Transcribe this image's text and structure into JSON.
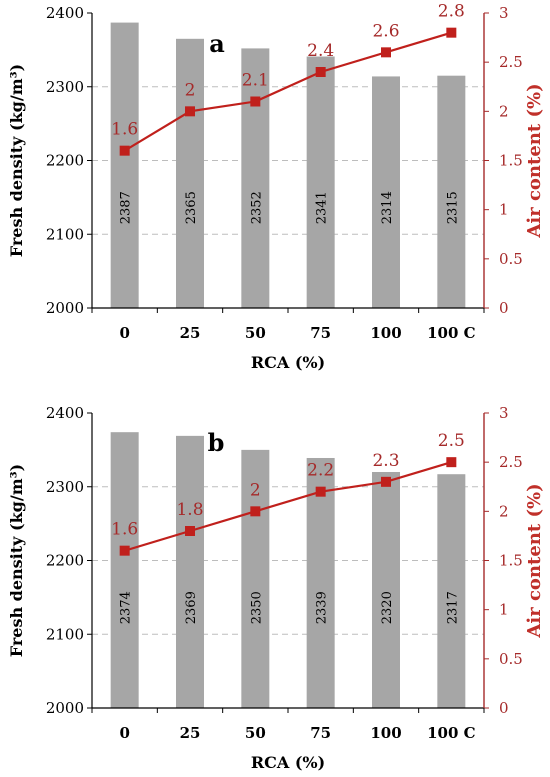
{
  "chart_data": [
    {
      "type": "bar",
      "panel_label": "a",
      "categories": [
        "0",
        "25",
        "50",
        "75",
        "100",
        "100 C"
      ],
      "xlabel": "RCA (%)",
      "ylabel": "Fresh density (kg/m³)",
      "ylim": [
        2000,
        2400
      ],
      "yticks": [
        "2000",
        "2100",
        "2200",
        "2300",
        "2400"
      ],
      "y2label": "Air content (%)",
      "y2lim": [
        0,
        3
      ],
      "y2ticks": [
        "0",
        "0.5",
        "1",
        "1.5",
        "2",
        "2.5",
        "3"
      ],
      "grid": "horizontal dashed",
      "series": [
        {
          "kind": "bar",
          "color": "#a6a6a6",
          "values": [
            2387,
            2365,
            2352,
            2341,
            2314,
            2315
          ],
          "labels": [
            "2387",
            "2365",
            "2352",
            "2341",
            "2314",
            "2315"
          ]
        },
        {
          "kind": "line",
          "axis": "right",
          "color": "#c0201c",
          "values": [
            1.6,
            2,
            2.1,
            2.4,
            2.6,
            2.8
          ],
          "labels": [
            "1.6",
            "2",
            "2.1",
            "2.4",
            "2.6",
            "2.8"
          ]
        }
      ]
    },
    {
      "type": "bar",
      "panel_label": "b",
      "categories": [
        "0",
        "25",
        "50",
        "75",
        "100",
        "100 C"
      ],
      "xlabel": "RCA (%)",
      "ylabel": "Fresh density (kg/m³)",
      "ylim": [
        2000,
        2400
      ],
      "yticks": [
        "2000",
        "2100",
        "2200",
        "2300",
        "2400"
      ],
      "y2label": "Air content (%)",
      "y2lim": [
        0,
        3
      ],
      "y2ticks": [
        "0",
        "0.5",
        "1",
        "1.5",
        "2",
        "2.5",
        "3"
      ],
      "grid": "horizontal dashed",
      "series": [
        {
          "kind": "bar",
          "color": "#a6a6a6",
          "values": [
            2374,
            2369,
            2350,
            2339,
            2320,
            2317
          ],
          "labels": [
            "2374",
            "2369",
            "2350",
            "2339",
            "2320",
            "2317"
          ]
        },
        {
          "kind": "line",
          "axis": "right",
          "color": "#c0201c",
          "values": [
            1.6,
            1.8,
            2,
            2.2,
            2.3,
            2.5
          ],
          "labels": [
            "1.6",
            "1.8",
            "2",
            "2.2",
            "2.3",
            "2.5"
          ]
        }
      ]
    }
  ]
}
